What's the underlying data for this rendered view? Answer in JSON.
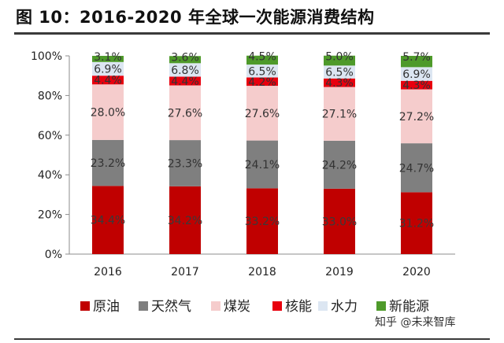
{
  "header": {
    "title": "图 10：2016-2020 年全球一次能源消费结构"
  },
  "watermark": "知乎 @未来智库",
  "colors": {
    "原油": "#c00000",
    "天然气": "#7f7f7f",
    "煤炭": "#f5cccc",
    "核能": "#e8000e",
    "水力": "#dce6f2",
    "新能源": "#4e9a2a"
  },
  "chart_data": {
    "type": "bar",
    "stacked": true,
    "categories": [
      "2016",
      "2017",
      "2018",
      "2019",
      "2020"
    ],
    "series": [
      {
        "name": "原油",
        "values": [
          34.4,
          34.2,
          33.2,
          33.0,
          31.2
        ],
        "labels": [
          "34.4%",
          "34.2%",
          "33.2%",
          "33.0%",
          "31.2%"
        ]
      },
      {
        "name": "天然气",
        "values": [
          23.2,
          23.3,
          24.1,
          24.2,
          24.7
        ],
        "labels": [
          "23.2%",
          "23.3%",
          "24.1%",
          "24.2%",
          "24.7%"
        ]
      },
      {
        "name": "煤炭",
        "values": [
          28.0,
          27.6,
          27.6,
          27.1,
          27.2
        ],
        "labels": [
          "28.0%",
          "27.6%",
          "27.6%",
          "27.1%",
          "27.2%"
        ]
      },
      {
        "name": "核能",
        "values": [
          4.4,
          4.4,
          4.2,
          4.3,
          4.3
        ],
        "labels": [
          "4.4%",
          "4.4%",
          "4.2%",
          "4.3%",
          "4.3%"
        ]
      },
      {
        "name": "水力",
        "values": [
          6.9,
          6.8,
          6.5,
          6.5,
          6.9
        ],
        "labels": [
          "6.9%",
          "6.8%",
          "6.5%",
          "6.5%",
          "6.9%"
        ]
      },
      {
        "name": "新能源",
        "values": [
          3.1,
          3.6,
          4.5,
          5.0,
          5.7
        ],
        "labels": [
          "3.1%",
          "3.6%",
          "4.5%",
          "5.0%",
          "5.7%"
        ]
      }
    ],
    "ylim": [
      0,
      100
    ],
    "yticks": [
      0,
      20,
      40,
      60,
      80,
      100
    ],
    "ytick_labels": [
      "0%",
      "20%",
      "40%",
      "60%",
      "80%",
      "100%"
    ],
    "legend_position": "bottom",
    "grid": false
  }
}
